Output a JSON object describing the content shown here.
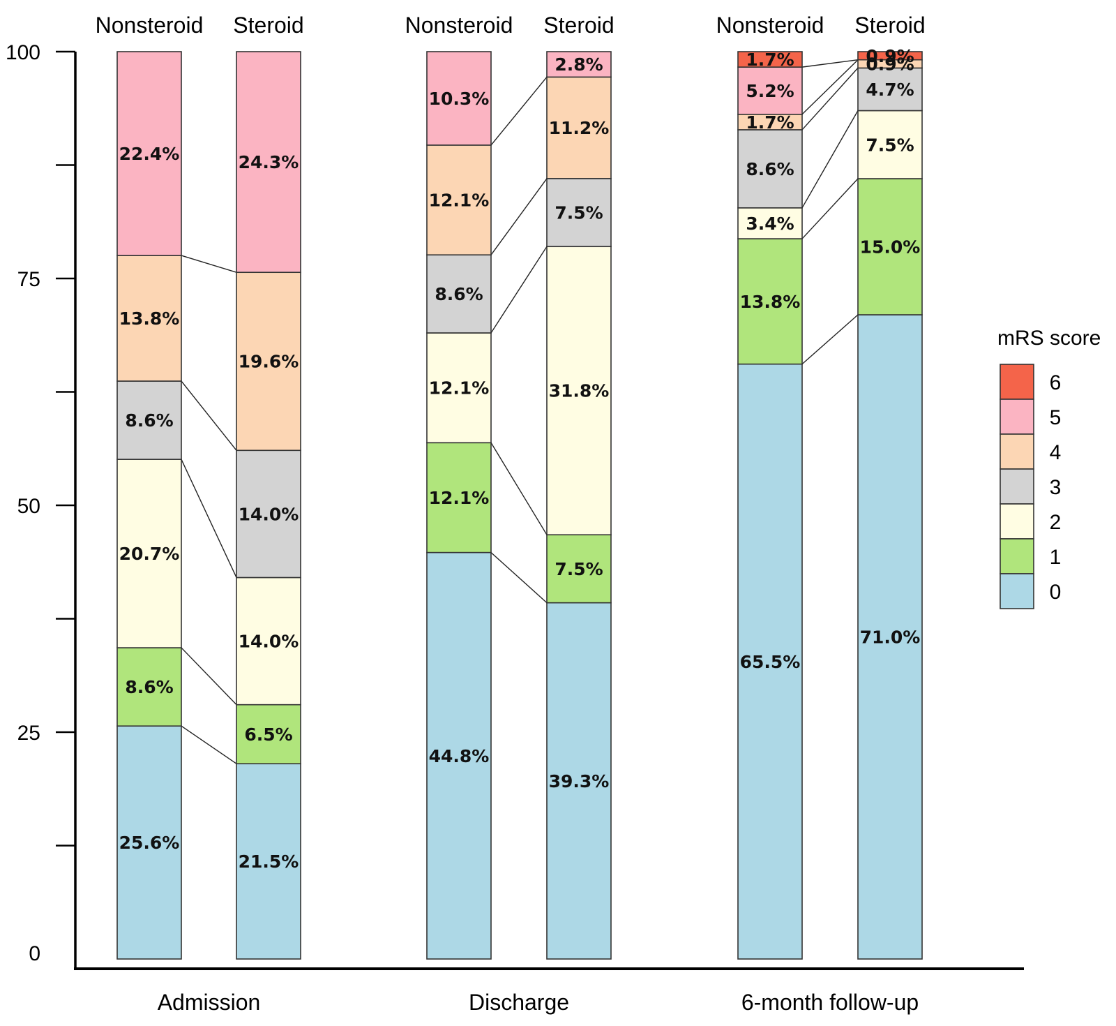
{
  "chart_data": {
    "type": "bar",
    "stacked": true,
    "title": "",
    "xlabel": "",
    "ylabel": "",
    "ylim": [
      0,
      100
    ],
    "y_ticks": [
      "0",
      "25",
      "50",
      "75",
      "100"
    ],
    "groups": [
      {
        "name": "Admission",
        "bars": [
          {
            "name": "Nonsteroid",
            "values": [
              25.6,
              8.6,
              20.7,
              8.6,
              13.8,
              22.4,
              0
            ],
            "labels": [
              "25.6%",
              "8.6%",
              "20.7%",
              "8.6%",
              "13.8%",
              "22.4%",
              ""
            ]
          },
          {
            "name": "Steroid",
            "values": [
              21.5,
              6.5,
              14.0,
              14.0,
              19.6,
              24.3,
              0
            ],
            "labels": [
              "21.5%",
              "6.5%",
              "14.0%",
              "14.0%",
              "19.6%",
              "24.3%",
              ""
            ]
          }
        ]
      },
      {
        "name": "Discharge",
        "bars": [
          {
            "name": "Nonsteroid",
            "values": [
              44.8,
              12.1,
              12.1,
              8.6,
              12.1,
              10.3,
              0
            ],
            "labels": [
              "44.8%",
              "12.1%",
              "12.1%",
              "8.6%",
              "12.1%",
              "10.3%",
              ""
            ]
          },
          {
            "name": "Steroid",
            "values": [
              39.3,
              7.5,
              31.8,
              7.5,
              11.2,
              2.8,
              0
            ],
            "labels": [
              "39.3%",
              "7.5%",
              "31.8%",
              "7.5%",
              "11.2%",
              "2.8%",
              ""
            ]
          }
        ]
      },
      {
        "name": "6-month follow-up",
        "bars": [
          {
            "name": "Nonsteroid",
            "values": [
              65.5,
              13.8,
              3.4,
              8.6,
              1.7,
              5.2,
              1.7
            ],
            "labels": [
              "65.5%",
              "13.8%",
              "3.4%",
              "8.6%",
              "1.7%",
              "5.2%",
              "1.7%"
            ]
          },
          {
            "name": "Steroid",
            "values": [
              71.0,
              15.0,
              7.5,
              4.7,
              0.9,
              0,
              0.9
            ],
            "labels": [
              "71.0%",
              "15.0%",
              "7.5%",
              "4.7%",
              "0.9%",
              "",
              "0.9%"
            ]
          }
        ]
      }
    ],
    "legend": {
      "title": "mRS score",
      "placement": "right",
      "entries": [
        {
          "label": "6",
          "score": 6,
          "color": "#f4644a"
        },
        {
          "label": "5",
          "score": 5,
          "color": "#fbb4c2"
        },
        {
          "label": "4",
          "score": 4,
          "color": "#fcd6b4"
        },
        {
          "label": "3",
          "score": 3,
          "color": "#d3d3d3"
        },
        {
          "label": "2",
          "score": 2,
          "color": "#fffde3"
        },
        {
          "label": "1",
          "score": 1,
          "color": "#b0e57c"
        },
        {
          "label": "0",
          "score": 0,
          "color": "#add8e6"
        }
      ]
    }
  }
}
